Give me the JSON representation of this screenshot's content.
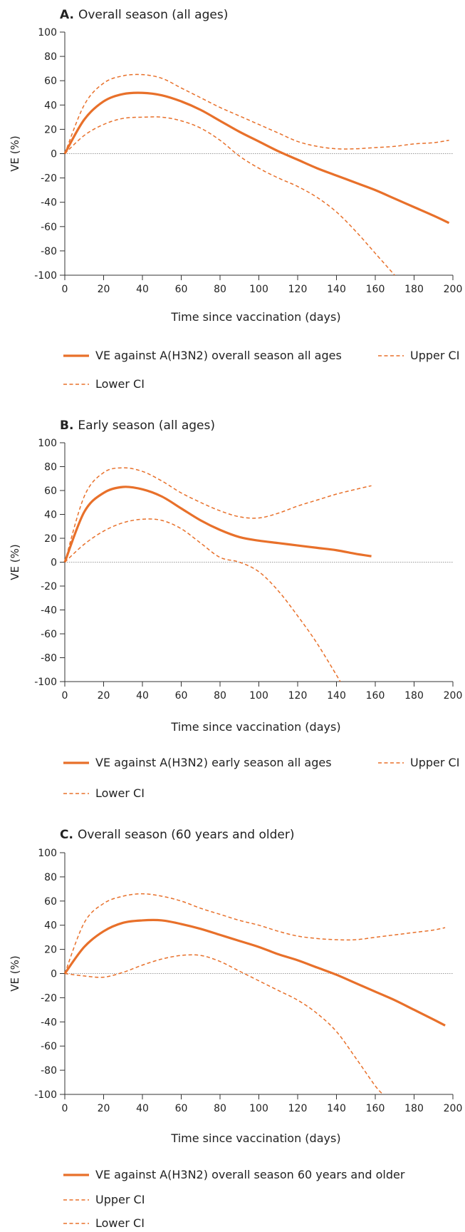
{
  "colors": {
    "accent": "#E8702A",
    "axis": "#333333",
    "zero_line": "#9a9a9a"
  },
  "chart_data": [
    {
      "type": "line",
      "panel_letter": "A.",
      "title": "Overall season (all ages)",
      "xlabel": "Time since vaccination (days)",
      "ylabel": "VE (%)",
      "xlim": [
        0,
        200
      ],
      "ylim": [
        -100,
        100
      ],
      "xticks": [
        0,
        20,
        40,
        60,
        80,
        100,
        120,
        140,
        160,
        180,
        200
      ],
      "yticks": [
        100,
        80,
        60,
        40,
        20,
        0,
        -20,
        -40,
        -60,
        -80,
        -100
      ],
      "zero_line": true,
      "series": [
        {
          "name": "VE against A(H3N2) overall season all ages",
          "style": "solid",
          "x": [
            0,
            10,
            20,
            30,
            40,
            50,
            60,
            70,
            80,
            90,
            100,
            110,
            120,
            130,
            140,
            150,
            160,
            170,
            180,
            190,
            198
          ],
          "y": [
            0,
            28,
            43,
            49,
            50,
            48,
            43,
            36,
            27,
            18,
            10,
            2,
            -5,
            -12,
            -18,
            -24,
            -30,
            -37,
            -44,
            -51,
            -57
          ]
        },
        {
          "name": "Upper CI",
          "style": "dashed",
          "x": [
            0,
            10,
            20,
            30,
            40,
            50,
            60,
            70,
            80,
            90,
            100,
            110,
            120,
            130,
            140,
            150,
            160,
            170,
            180,
            190,
            198
          ],
          "y": [
            0,
            40,
            58,
            64,
            65,
            62,
            54,
            46,
            38,
            31,
            24,
            17,
            10,
            6,
            4,
            4,
            5,
            6,
            8,
            9,
            11
          ]
        },
        {
          "name": "Lower CI",
          "style": "dashed",
          "x": [
            0,
            10,
            20,
            30,
            40,
            50,
            60,
            70,
            80,
            90,
            100,
            110,
            120,
            130,
            140,
            150,
            160,
            170
          ],
          "y": [
            0,
            15,
            24,
            29,
            30,
            30,
            27,
            21,
            11,
            -2,
            -12,
            -20,
            -27,
            -36,
            -48,
            -64,
            -82,
            -100
          ]
        }
      ],
      "legend_rows": [
        [
          {
            "style": "solid",
            "label": "VE against A(H3N2) overall season all ages"
          },
          {
            "style": "dashed",
            "label": "Upper CI"
          }
        ],
        [
          {
            "style": "dashed",
            "label": "Lower CI"
          }
        ]
      ]
    },
    {
      "type": "line",
      "panel_letter": "B.",
      "title": "Early season (all ages)",
      "xlabel": "Time since vaccination (days)",
      "ylabel": "VE (%)",
      "xlim": [
        0,
        200
      ],
      "ylim": [
        -100,
        100
      ],
      "xticks": [
        0,
        20,
        40,
        60,
        80,
        100,
        120,
        140,
        160,
        180,
        200
      ],
      "yticks": [
        100,
        80,
        60,
        40,
        20,
        0,
        -20,
        -40,
        -60,
        -80,
        -100
      ],
      "zero_line": true,
      "series": [
        {
          "name": "VE against A(H3N2) early season all ages",
          "style": "solid",
          "x": [
            0,
            10,
            20,
            30,
            40,
            50,
            60,
            70,
            80,
            90,
            100,
            110,
            120,
            130,
            140,
            150,
            158
          ],
          "y": [
            0,
            42,
            58,
            63,
            61,
            55,
            45,
            35,
            27,
            21,
            18,
            16,
            14,
            12,
            10,
            7,
            5
          ]
        },
        {
          "name": "Upper CI",
          "style": "dashed",
          "x": [
            0,
            10,
            20,
            30,
            40,
            50,
            60,
            70,
            80,
            90,
            100,
            110,
            120,
            130,
            140,
            150,
            158
          ],
          "y": [
            0,
            55,
            75,
            79,
            76,
            68,
            58,
            50,
            43,
            38,
            37,
            41,
            47,
            52,
            57,
            61,
            64
          ]
        },
        {
          "name": "Lower CI",
          "style": "dashed",
          "x": [
            0,
            10,
            20,
            30,
            40,
            50,
            60,
            70,
            80,
            90,
            100,
            110,
            120,
            130,
            142
          ],
          "y": [
            0,
            15,
            26,
            33,
            36,
            35,
            28,
            16,
            4,
            0,
            -8,
            -24,
            -45,
            -68,
            -100
          ]
        }
      ],
      "legend_rows": [
        [
          {
            "style": "solid",
            "label": "VE against A(H3N2) early season all ages"
          },
          {
            "style": "dashed",
            "label": "Upper CI"
          }
        ],
        [
          {
            "style": "dashed",
            "label": "Lower CI"
          }
        ]
      ]
    },
    {
      "type": "line",
      "panel_letter": "C.",
      "title": "Overall season (60 years and older)",
      "xlabel": "Time since vaccination (days)",
      "ylabel": "VE (%)",
      "xlim": [
        0,
        200
      ],
      "ylim": [
        -100,
        100
      ],
      "xticks": [
        0,
        20,
        40,
        60,
        80,
        100,
        120,
        140,
        160,
        180,
        200
      ],
      "yticks": [
        100,
        80,
        60,
        40,
        20,
        0,
        -20,
        -40,
        -60,
        -80,
        -100
      ],
      "zero_line": true,
      "series": [
        {
          "name": "VE against A(H3N2) overall season 60 years and older",
          "style": "solid",
          "x": [
            0,
            10,
            20,
            30,
            40,
            50,
            60,
            70,
            80,
            90,
            100,
            110,
            120,
            130,
            140,
            150,
            160,
            170,
            180,
            190,
            196
          ],
          "y": [
            0,
            22,
            35,
            42,
            44,
            44,
            41,
            37,
            32,
            27,
            22,
            16,
            11,
            5,
            -1,
            -8,
            -15,
            -22,
            -30,
            -38,
            -43
          ]
        },
        {
          "name": "Upper CI",
          "style": "dashed",
          "x": [
            0,
            10,
            20,
            30,
            40,
            50,
            60,
            70,
            80,
            90,
            100,
            110,
            120,
            130,
            140,
            150,
            160,
            170,
            180,
            190,
            196
          ],
          "y": [
            0,
            42,
            58,
            64,
            66,
            64,
            60,
            54,
            49,
            44,
            40,
            35,
            31,
            29,
            28,
            28,
            30,
            32,
            34,
            36,
            38
          ]
        },
        {
          "name": "Lower CI",
          "style": "dashed",
          "x": [
            0,
            10,
            20,
            30,
            40,
            50,
            60,
            70,
            80,
            90,
            100,
            110,
            120,
            130,
            140,
            150,
            160,
            164
          ],
          "y": [
            0,
            -2,
            -3,
            1,
            7,
            12,
            15,
            15,
            10,
            2,
            -6,
            -14,
            -22,
            -33,
            -48,
            -70,
            -93,
            -100
          ]
        }
      ],
      "legend_rows": [
        [
          {
            "style": "solid",
            "label": "VE against A(H3N2) overall season 60 years and older"
          }
        ],
        [
          {
            "style": "dashed",
            "label": "Upper CI"
          }
        ],
        [
          {
            "style": "dashed",
            "label": "Lower CI"
          }
        ]
      ]
    }
  ]
}
